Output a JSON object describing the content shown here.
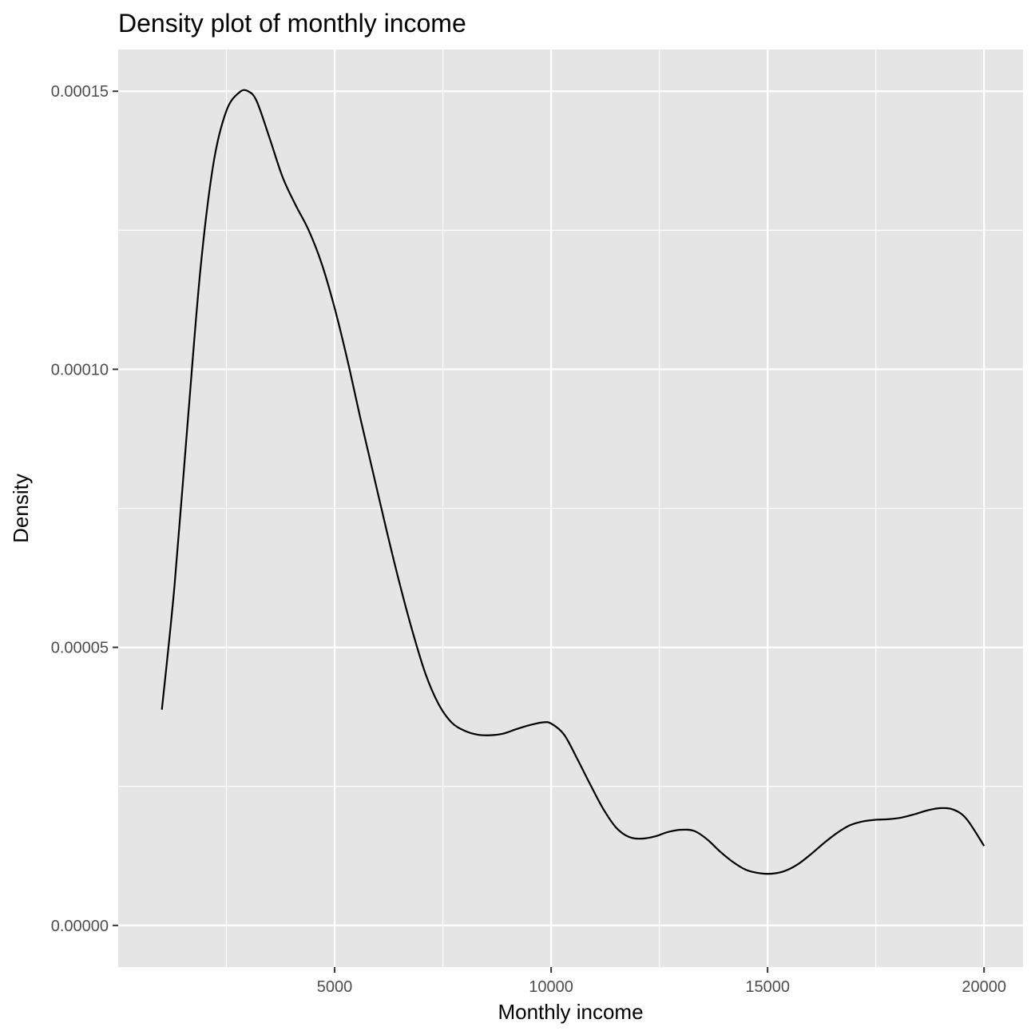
{
  "chart_data": {
    "type": "line",
    "title": "Density plot of monthly income",
    "xlabel": "Monthly income",
    "ylabel": "Density",
    "xlim": [
      0,
      20900
    ],
    "ylim": [
      -7.5e-06,
      7.5e-06
    ],
    "x_ticks": [
      {
        "value": 5000,
        "label": "5000"
      },
      {
        "value": 10000,
        "label": "10000"
      },
      {
        "value": 15000,
        "label": "15000"
      },
      {
        "value": 20000,
        "label": "20000"
      }
    ],
    "y_ticks": [
      {
        "value": 0,
        "label": "0.00000"
      },
      {
        "value": 5e-05,
        "label": "0.00005"
      },
      {
        "value": 0.0001,
        "label": "0.00010"
      },
      {
        "value": 0.00015,
        "label": "0.00015"
      }
    ],
    "x_minor_ticks": [
      2500,
      7500,
      12500,
      17500
    ],
    "y_minor_ticks": [
      2.5e-05,
      7.5e-05,
      0.000125
    ],
    "grid": true,
    "legend": "none",
    "colors": {
      "panel_background": "#e5e5e5",
      "grid": "#ffffff",
      "line": "#000000",
      "tick_label": "#4d4d4d"
    },
    "series": [
      {
        "x": [
          1009,
          1300,
          1600,
          1900,
          2200,
          2500,
          2800,
          3000,
          3200,
          3500,
          3800,
          4100,
          4400,
          4700,
          5000,
          5300,
          5600,
          5900,
          6200,
          6500,
          6800,
          7100,
          7400,
          7700,
          8000,
          8300,
          8600,
          8900,
          9200,
          9500,
          9800,
          10000,
          10300,
          10600,
          10900,
          11200,
          11500,
          11800,
          12100,
          12400,
          12700,
          13000,
          13300,
          13600,
          13900,
          14200,
          14500,
          14800,
          15100,
          15400,
          15700,
          16000,
          16300,
          16600,
          16900,
          17200,
          17500,
          17800,
          18100,
          18400,
          18700,
          19000,
          19300,
          19600,
          20000
        ],
        "y": [
          3.88e-05,
          6.1e-05,
          9e-05,
          0.000118,
          0.000137,
          0.0001465,
          0.0001498,
          0.00015,
          0.0001482,
          0.0001415,
          0.0001345,
          0.0001295,
          0.000125,
          0.000119,
          0.000111,
          0.0001015,
          9.1e-05,
          8.1e-05,
          7.1e-05,
          6.15e-05,
          5.28e-05,
          4.52e-05,
          3.98e-05,
          3.65e-05,
          3.5e-05,
          3.43e-05,
          3.42e-05,
          3.45e-05,
          3.53e-05,
          3.6e-05,
          3.65e-05,
          3.63e-05,
          3.43e-05,
          3e-05,
          2.54e-05,
          2.1e-05,
          1.76e-05,
          1.59e-05,
          1.56e-05,
          1.6e-05,
          1.68e-05,
          1.72e-05,
          1.7e-05,
          1.55e-05,
          1.33e-05,
          1.14e-05,
          1e-05,
          9.4e-06,
          9.3e-06,
          9.8e-06,
          1.1e-05,
          1.28e-05,
          1.48e-05,
          1.66e-05,
          1.8e-05,
          1.87e-05,
          1.9e-05,
          1.91e-05,
          1.94e-05,
          2e-05,
          2.07e-05,
          2.11e-05,
          2.08e-05,
          1.91e-05,
          1.43e-05
        ]
      }
    ]
  }
}
